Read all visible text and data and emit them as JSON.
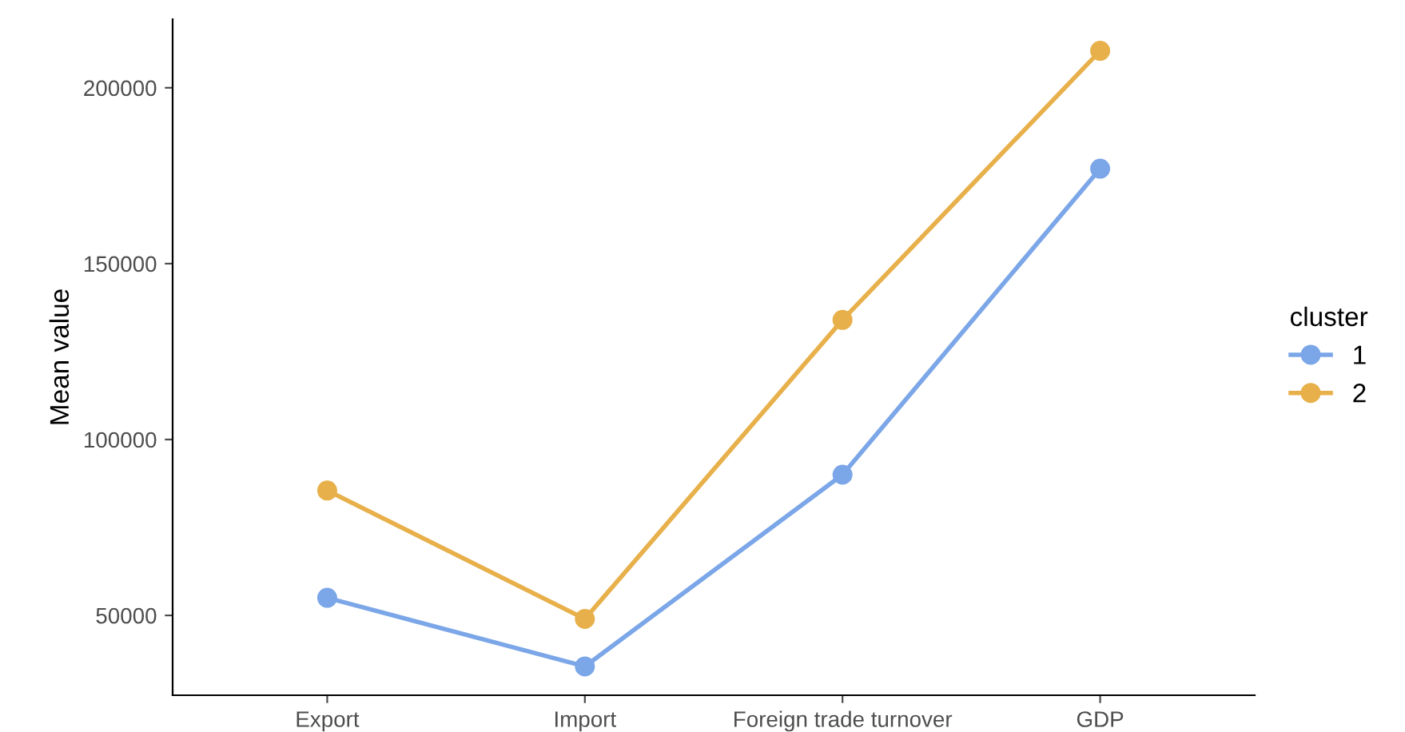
{
  "chart_data": {
    "type": "line",
    "ylabel": "Mean value",
    "legend_title": "cluster",
    "categories": [
      "Export",
      "Import",
      "Foreign trade turnover",
      "GDP"
    ],
    "series": [
      {
        "name": "1",
        "color": "#7ba6e8",
        "values": [
          55000,
          35500,
          90000,
          177000
        ]
      },
      {
        "name": "2",
        "color": "#e8b04a",
        "values": [
          85500,
          49000,
          134000,
          210500
        ]
      }
    ],
    "ylim": [
      27300,
      219500
    ],
    "yticks": [
      50000,
      100000,
      150000,
      200000
    ],
    "grid": false,
    "legend": "right",
    "marker": "circle",
    "line_style": "solid"
  }
}
